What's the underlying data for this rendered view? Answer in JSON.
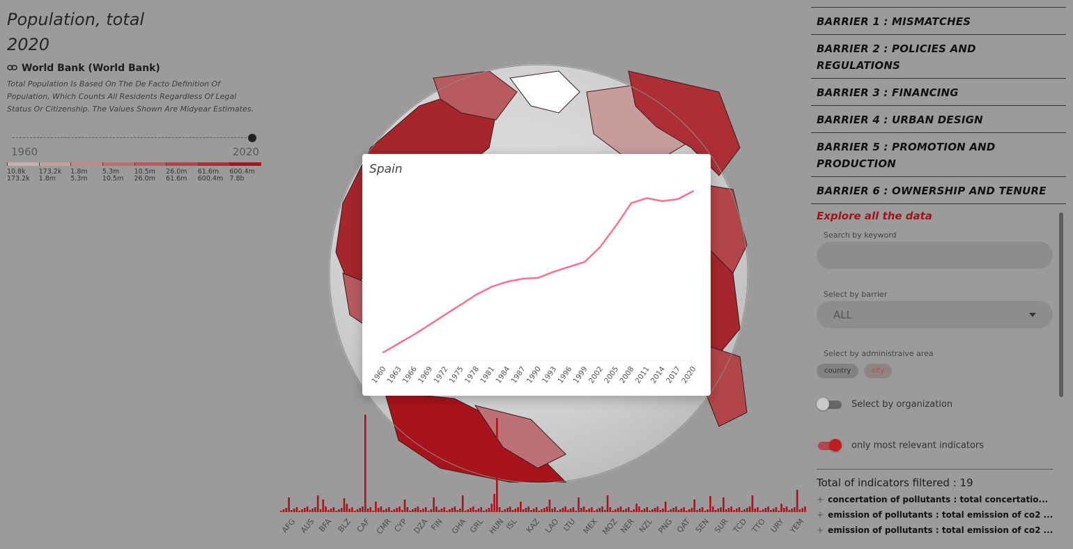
{
  "indicator": {
    "title_line1": "Population, total",
    "title_line2": "2020",
    "source": "World Bank (World Bank)",
    "description": "Total Population Is Based On The De Facto Definition Of Population, Which Counts All Residents Regardless Of Legal Status Or Citizenship. The Values Shown Are Midyear Estimates.",
    "year_start": "1960",
    "year_end": "2020",
    "slider_value": 1.0
  },
  "legend": [
    {
      "from": "10.8k",
      "to": "173.2k",
      "color": "#c7b1b1"
    },
    {
      "from": "173.2k",
      "to": "1.8m",
      "color": "#c69c9d"
    },
    {
      "from": "1.8m",
      "to": "5.3m",
      "color": "#c28789"
    },
    {
      "from": "5.3m",
      "to": "10.5m",
      "color": "#bd7174"
    },
    {
      "from": "10.5m",
      "to": "26.0m",
      "color": "#b75b5f"
    },
    {
      "from": "26.0m",
      "to": "61.6m",
      "color": "#b2454a"
    },
    {
      "from": "61.6m",
      "to": "600.4m",
      "color": "#ad2f35"
    },
    {
      "from": "600.4m",
      "to": "7.8b",
      "color": "#a8141b"
    }
  ],
  "country_ticks": [
    "AFG",
    "AUS",
    "BFA",
    "BLZ",
    "CAF",
    "CMR",
    "CYP",
    "DZA",
    "FIN",
    "GHA",
    "GRL",
    "HUN",
    "ISL",
    "KAZ",
    "LAO",
    "LTU",
    "MEX",
    "MOZ",
    "NER",
    "NZL",
    "PNG",
    "QAT",
    "SEN",
    "SUR",
    "TCD",
    "TTO",
    "URY",
    "YEM"
  ],
  "modal": {
    "title": "Spain"
  },
  "chart_data": {
    "type": "line",
    "title": "Spain",
    "xlabel": "",
    "ylabel": "",
    "x": [
      1960,
      1963,
      1966,
      1969,
      1972,
      1975,
      1978,
      1981,
      1984,
      1987,
      1990,
      1993,
      1996,
      1999,
      2002,
      2005,
      2008,
      2011,
      2014,
      2017,
      2020
    ],
    "tick_labels": [
      "1960",
      "1963",
      "1966",
      "1969",
      "1972",
      "1975",
      "1978",
      "1981",
      "1984",
      "1987",
      "1990",
      "1993",
      "1996",
      "1999",
      "2002",
      "2005",
      "2008",
      "2011",
      "2014",
      "2017",
      "2020"
    ],
    "series": [
      {
        "values": [
          30.5,
          31.4,
          32.3,
          33.3,
          34.3,
          35.3,
          36.3,
          37.1,
          37.6,
          37.9,
          38.0,
          38.6,
          39.1,
          39.6,
          41.1,
          43.2,
          45.5,
          46.0,
          45.7,
          45.9,
          46.7
        ]
      }
    ],
    "ylim": [
      30.0,
      47.5
    ],
    "grid": false,
    "color": "#ff6f8d"
  },
  "barriers": [
    "BARRIER 1 : MISMATCHES",
    "BARRIER 2 : POLICIES AND REGULATIONS",
    "BARRIER 3 : FINANCING",
    "BARRIER 4 : URBAN DESIGN",
    "BARRIER 5 : PROMOTION AND PRODUCTION",
    "BARRIER 6 : OWNERSHIP AND TENURE"
  ],
  "filters": {
    "explore_label": "Explore all the data",
    "search_label": "Search by keyword",
    "search_placeholder": "",
    "barrier_label": "Select by barrier",
    "barrier_value": "ALL",
    "area_label": "Select by administraive area",
    "area_chips": [
      "country",
      "city"
    ],
    "org_toggle_label": "Select by organization",
    "relevant_toggle_label": "only most relevant indicators",
    "total_label": "Total of indicators filtered : 19"
  },
  "indicators": [
    "concertation of pollutants : total concertatio...",
    "emission of pollutants : total emission of co2 ...",
    "emission of pollutants : total emission of co2 ..."
  ],
  "colors": {
    "accent": "#a1141a",
    "overlay_bg": "#9b9b9b",
    "line": "#ff6f8d"
  }
}
